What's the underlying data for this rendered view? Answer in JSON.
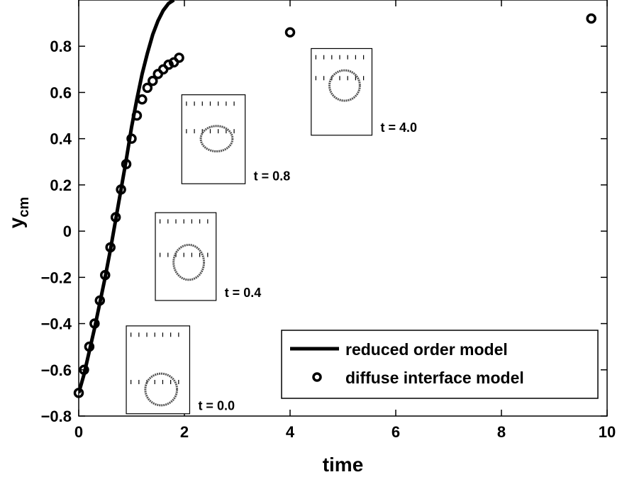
{
  "chart_data": {
    "type": "scatter",
    "xlabel": "time",
    "ylabel_main": "y",
    "ylabel_sub": "cm",
    "xlim": [
      0,
      10
    ],
    "ylim": [
      -0.8,
      1.0
    ],
    "x_ticks": [
      0,
      2,
      4,
      6,
      8,
      10
    ],
    "y_ticks": [
      -0.8,
      -0.6,
      -0.4,
      -0.2,
      0,
      0.2,
      0.4,
      0.6,
      0.8
    ],
    "x_tick_labels": [
      "0",
      "2",
      "4",
      "6",
      "8",
      "10"
    ],
    "y_tick_labels": [
      "−0.8",
      "−0.6",
      "−0.4",
      "−0.2",
      "0",
      "0.2",
      "0.4",
      "0.6",
      "0.8"
    ],
    "series": [
      {
        "name": "reduced order model",
        "style": "line",
        "color": "#000000",
        "x": [
          0,
          0.1,
          0.2,
          0.3,
          0.4,
          0.5,
          0.6,
          0.7,
          0.8,
          0.9,
          1.0,
          1.1,
          1.2,
          1.3,
          1.4,
          1.5,
          1.6,
          1.7,
          1.8
        ],
        "y": [
          -0.7,
          -0.62,
          -0.52,
          -0.42,
          -0.31,
          -0.2,
          -0.08,
          0.05,
          0.18,
          0.31,
          0.45,
          0.57,
          0.68,
          0.77,
          0.85,
          0.91,
          0.955,
          0.985,
          1.0
        ]
      },
      {
        "name": "diffuse interface model",
        "style": "markers",
        "color": "#000000",
        "x": [
          0,
          0.1,
          0.2,
          0.3,
          0.4,
          0.5,
          0.6,
          0.7,
          0.8,
          0.9,
          1.0,
          1.1,
          1.2,
          1.3,
          1.4,
          1.5,
          1.6,
          1.7,
          1.8,
          1.9,
          4.0,
          9.7
        ],
        "y": [
          -0.7,
          -0.6,
          -0.5,
          -0.4,
          -0.3,
          -0.19,
          -0.07,
          0.06,
          0.18,
          0.29,
          0.4,
          0.5,
          0.57,
          0.62,
          0.65,
          0.68,
          0.7,
          0.72,
          0.73,
          0.75,
          0.86,
          0.92
        ]
      }
    ],
    "legend": {
      "placement": "bottom-right"
    },
    "insets": [
      {
        "label": "t = 0.0",
        "x_range": [
          0.9,
          2.1
        ],
        "y_range": [
          -0.79,
          -0.41
        ],
        "drop_y": -0.685
      },
      {
        "label": "t = 0.4",
        "x_range": [
          1.45,
          2.6
        ],
        "y_range": [
          -0.3,
          0.08
        ],
        "drop_y": -0.135
      },
      {
        "label": "t = 0.8",
        "x_range": [
          1.95,
          3.15
        ],
        "y_range": [
          0.205,
          0.59
        ],
        "drop_y": 0.4
      },
      {
        "label": "t = 4.0",
        "x_range": [
          4.4,
          5.55
        ],
        "y_range": [
          0.415,
          0.79
        ],
        "drop_y": 0.63
      }
    ]
  }
}
